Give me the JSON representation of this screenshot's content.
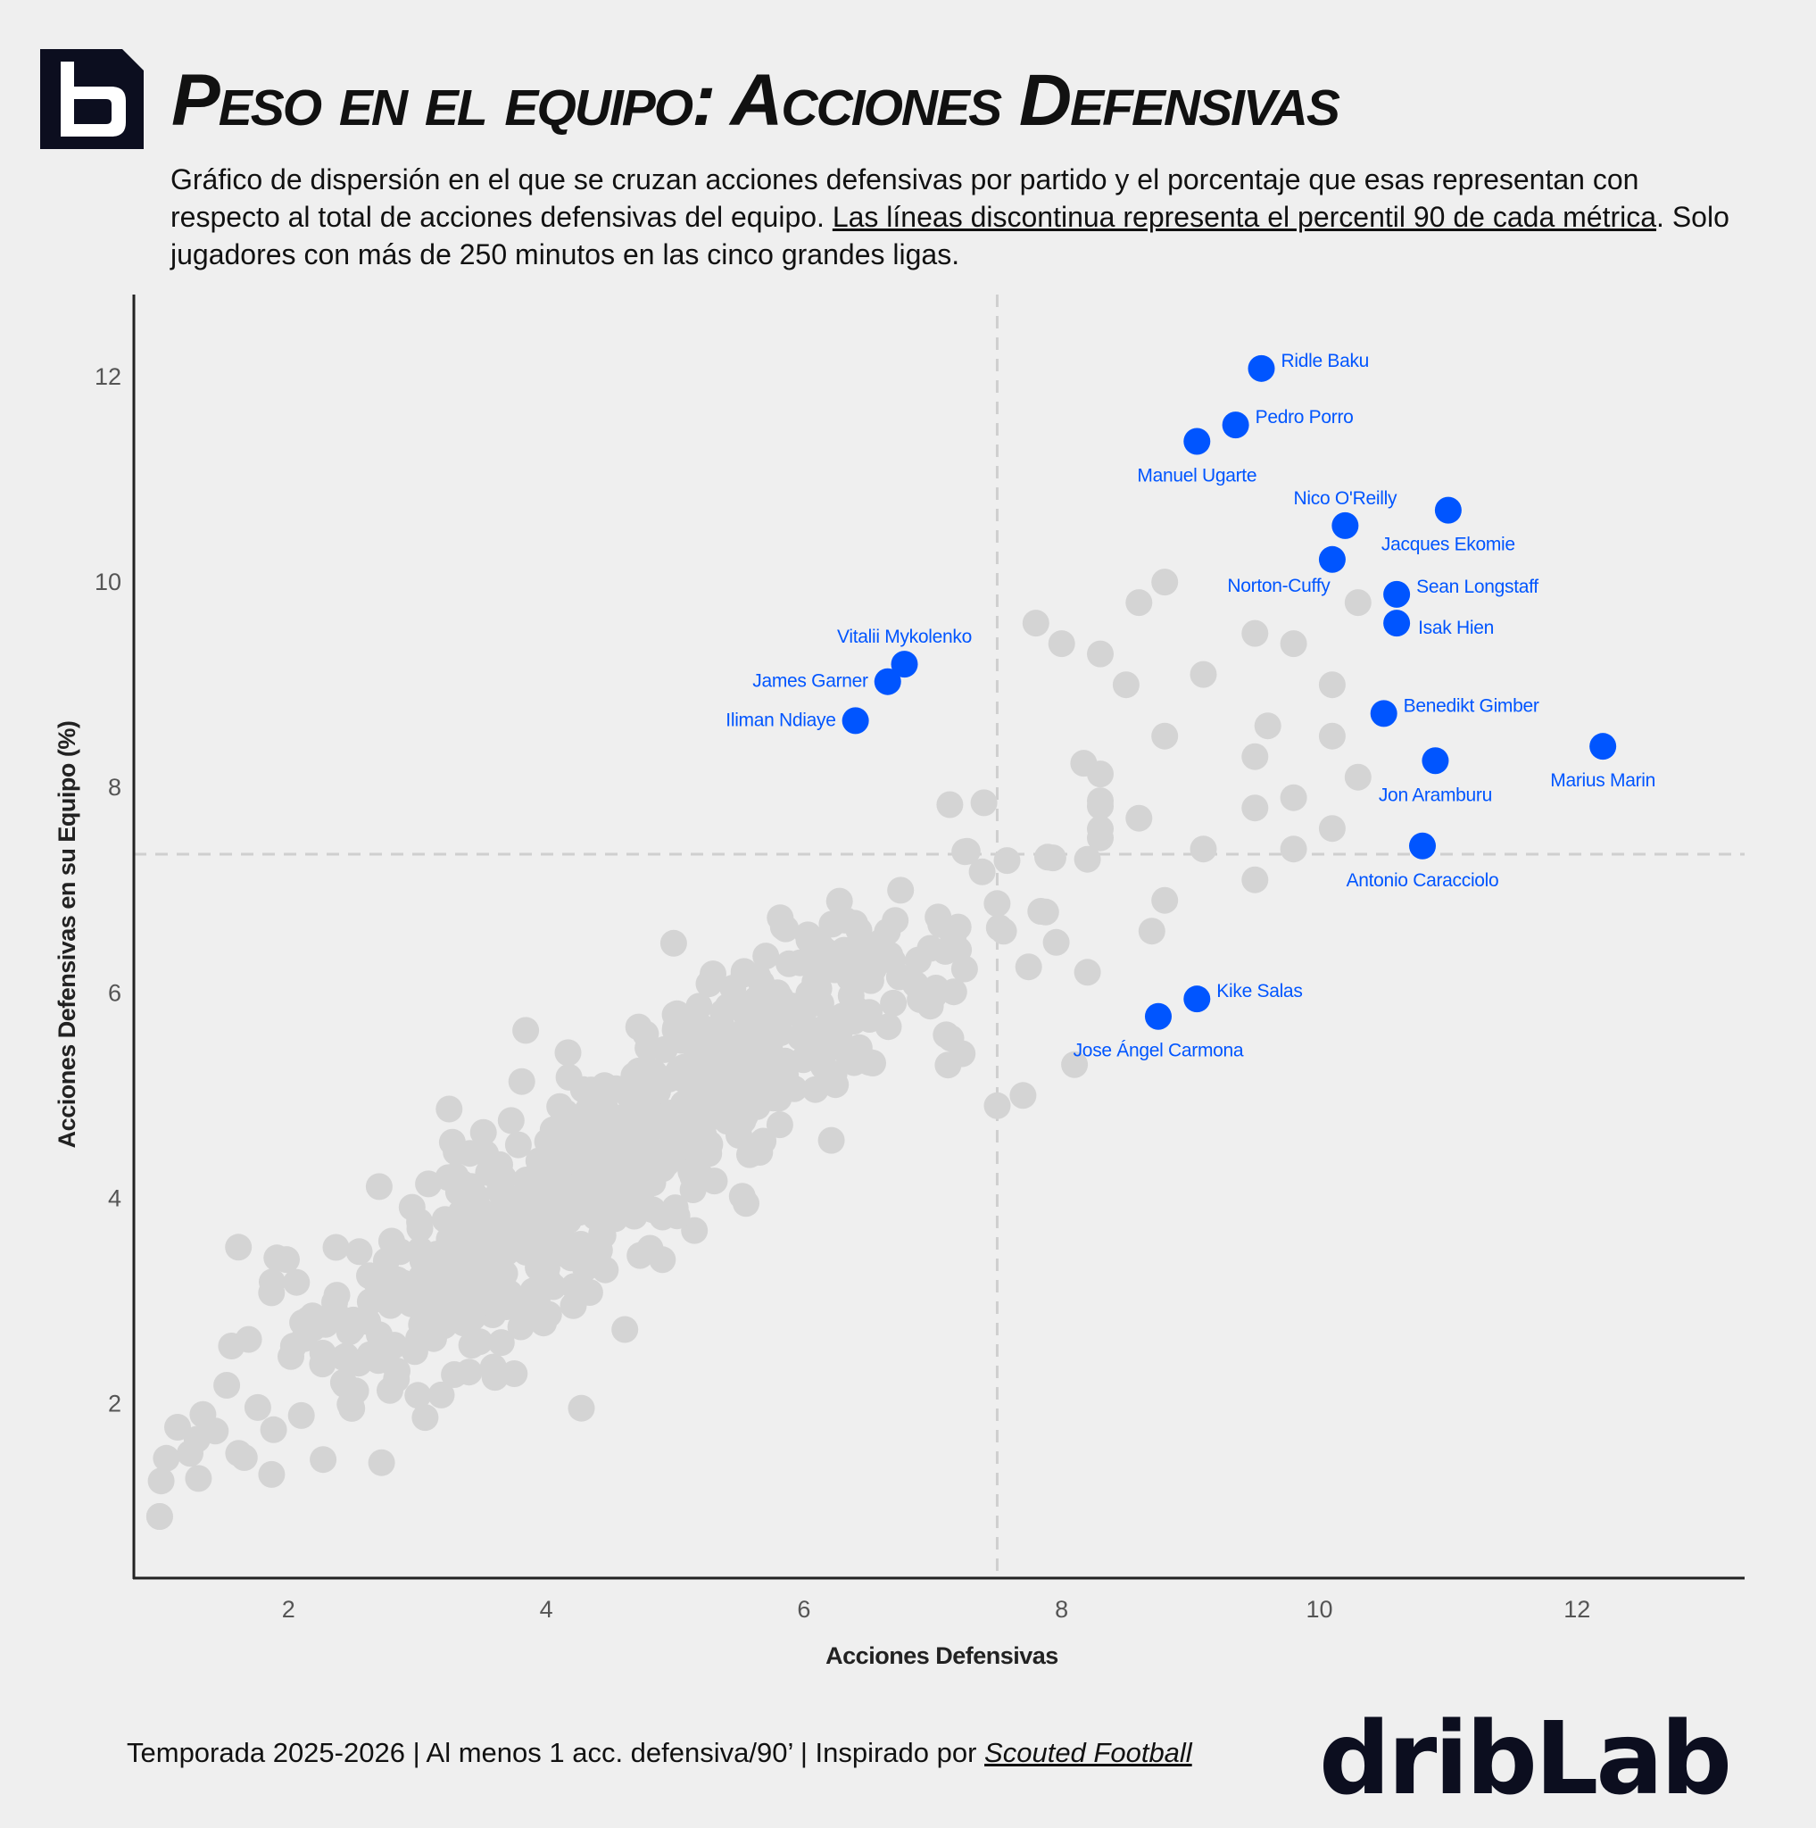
{
  "header": {
    "title": "Peso en el equipo: Acciones Defensivas",
    "subtitle_part1": "Gráfico de dispersión en el que se cruzan acciones defensivas por partido y el porcentaje que esas representan con respecto al total de acciones defensivas del equipo. ",
    "subtitle_underlined": "Las líneas discontinua representa el percentil 90 de cada métrica",
    "subtitle_part2": ". Solo jugadores con más de 250 minutos en las cinco grandes ligas."
  },
  "footer": {
    "text": "Temporada 2025-2026 | Al menos 1 acc. defensiva/90’ | Inspirado por ",
    "credit": "Scouted Football",
    "brand": "dribLab"
  },
  "colors": {
    "background": "#efefef",
    "highlight": "#0055ff",
    "background_points": "#d4d4d4",
    "reference_line": "#cfcfcf",
    "axis": "#222222",
    "logo": "#0c0e1f"
  },
  "icons": {
    "logo": "driblab-b-logo-icon"
  },
  "chart_data": {
    "type": "scatter",
    "xlabel": "Acciones Defensivas",
    "ylabel": "Acciones Defensivas en su Equipo (%)",
    "xlim": [
      0.8,
      13.3
    ],
    "ylim": [
      0.3,
      12.8
    ],
    "xticks": [
      2,
      4,
      6,
      8,
      10,
      12
    ],
    "yticks": [
      2,
      4,
      6,
      8,
      10,
      12
    ],
    "grid": false,
    "reference_lines": {
      "x_p90": 7.5,
      "y_p90": 7.35,
      "style": "dashed"
    },
    "background_count": 700,
    "background_seed": 7,
    "background_extra": [
      [
        8.8,
        10.0
      ],
      [
        8.6,
        9.8
      ],
      [
        9.5,
        9.5
      ],
      [
        9.8,
        9.4
      ],
      [
        7.8,
        9.6
      ],
      [
        8.0,
        9.4
      ],
      [
        8.3,
        9.3
      ],
      [
        9.1,
        9.1
      ],
      [
        10.1,
        9.0
      ],
      [
        10.3,
        9.8
      ],
      [
        8.5,
        9.0
      ],
      [
        9.6,
        8.6
      ],
      [
        10.1,
        8.5
      ],
      [
        9.5,
        8.3
      ],
      [
        9.8,
        7.9
      ],
      [
        10.3,
        8.1
      ],
      [
        9.5,
        7.8
      ],
      [
        10.1,
        7.6
      ],
      [
        9.8,
        7.4
      ],
      [
        9.5,
        7.1
      ],
      [
        9.1,
        7.4
      ],
      [
        8.8,
        8.5
      ],
      [
        8.6,
        7.7
      ],
      [
        8.2,
        7.3
      ],
      [
        8.7,
        6.6
      ],
      [
        8.2,
        6.2
      ],
      [
        8.1,
        5.3
      ],
      [
        8.8,
        6.9
      ],
      [
        7.5,
        4.9
      ],
      [
        7.7,
        5.0
      ]
    ],
    "highlighted": [
      {
        "name": "Ridle Baku",
        "x": 9.55,
        "y": 12.08,
        "label_pos": "right"
      },
      {
        "name": "Pedro Porro",
        "x": 9.35,
        "y": 11.53,
        "label_pos": "right"
      },
      {
        "name": "Manuel Ugarte",
        "x": 9.05,
        "y": 11.37,
        "label_pos": "below"
      },
      {
        "name": "Nico O'Reilly",
        "x": 10.2,
        "y": 10.55,
        "label_pos": "above"
      },
      {
        "name": "Jacques Ekomie",
        "x": 11.0,
        "y": 10.7,
        "label_pos": "below"
      },
      {
        "name": "Norton-Cuffy",
        "x": 10.1,
        "y": 10.22,
        "label_pos": "below-left"
      },
      {
        "name": "Sean Longstaff",
        "x": 10.6,
        "y": 9.88,
        "label_pos": "right"
      },
      {
        "name": "Isak Hien",
        "x": 10.6,
        "y": 9.6,
        "label_pos": "below-right"
      },
      {
        "name": "Vitalii Mykolenko",
        "x": 6.78,
        "y": 9.2,
        "label_pos": "above"
      },
      {
        "name": "James Garner",
        "x": 6.65,
        "y": 9.03,
        "label_pos": "left"
      },
      {
        "name": "Iliman Ndiaye",
        "x": 6.4,
        "y": 8.65,
        "label_pos": "left"
      },
      {
        "name": "Benedikt Gimber",
        "x": 10.5,
        "y": 8.72,
        "label_pos": "right"
      },
      {
        "name": "Marius Marin",
        "x": 12.2,
        "y": 8.4,
        "label_pos": "below"
      },
      {
        "name": "Jon Aramburu",
        "x": 10.9,
        "y": 8.26,
        "label_pos": "below"
      },
      {
        "name": "Antonio Caracciolo",
        "x": 10.8,
        "y": 7.43,
        "label_pos": "below"
      },
      {
        "name": "Kike Salas",
        "x": 9.05,
        "y": 5.94,
        "label_pos": "right"
      },
      {
        "name": "Jose Ángel Carmona",
        "x": 8.75,
        "y": 5.77,
        "label_pos": "below"
      }
    ]
  }
}
